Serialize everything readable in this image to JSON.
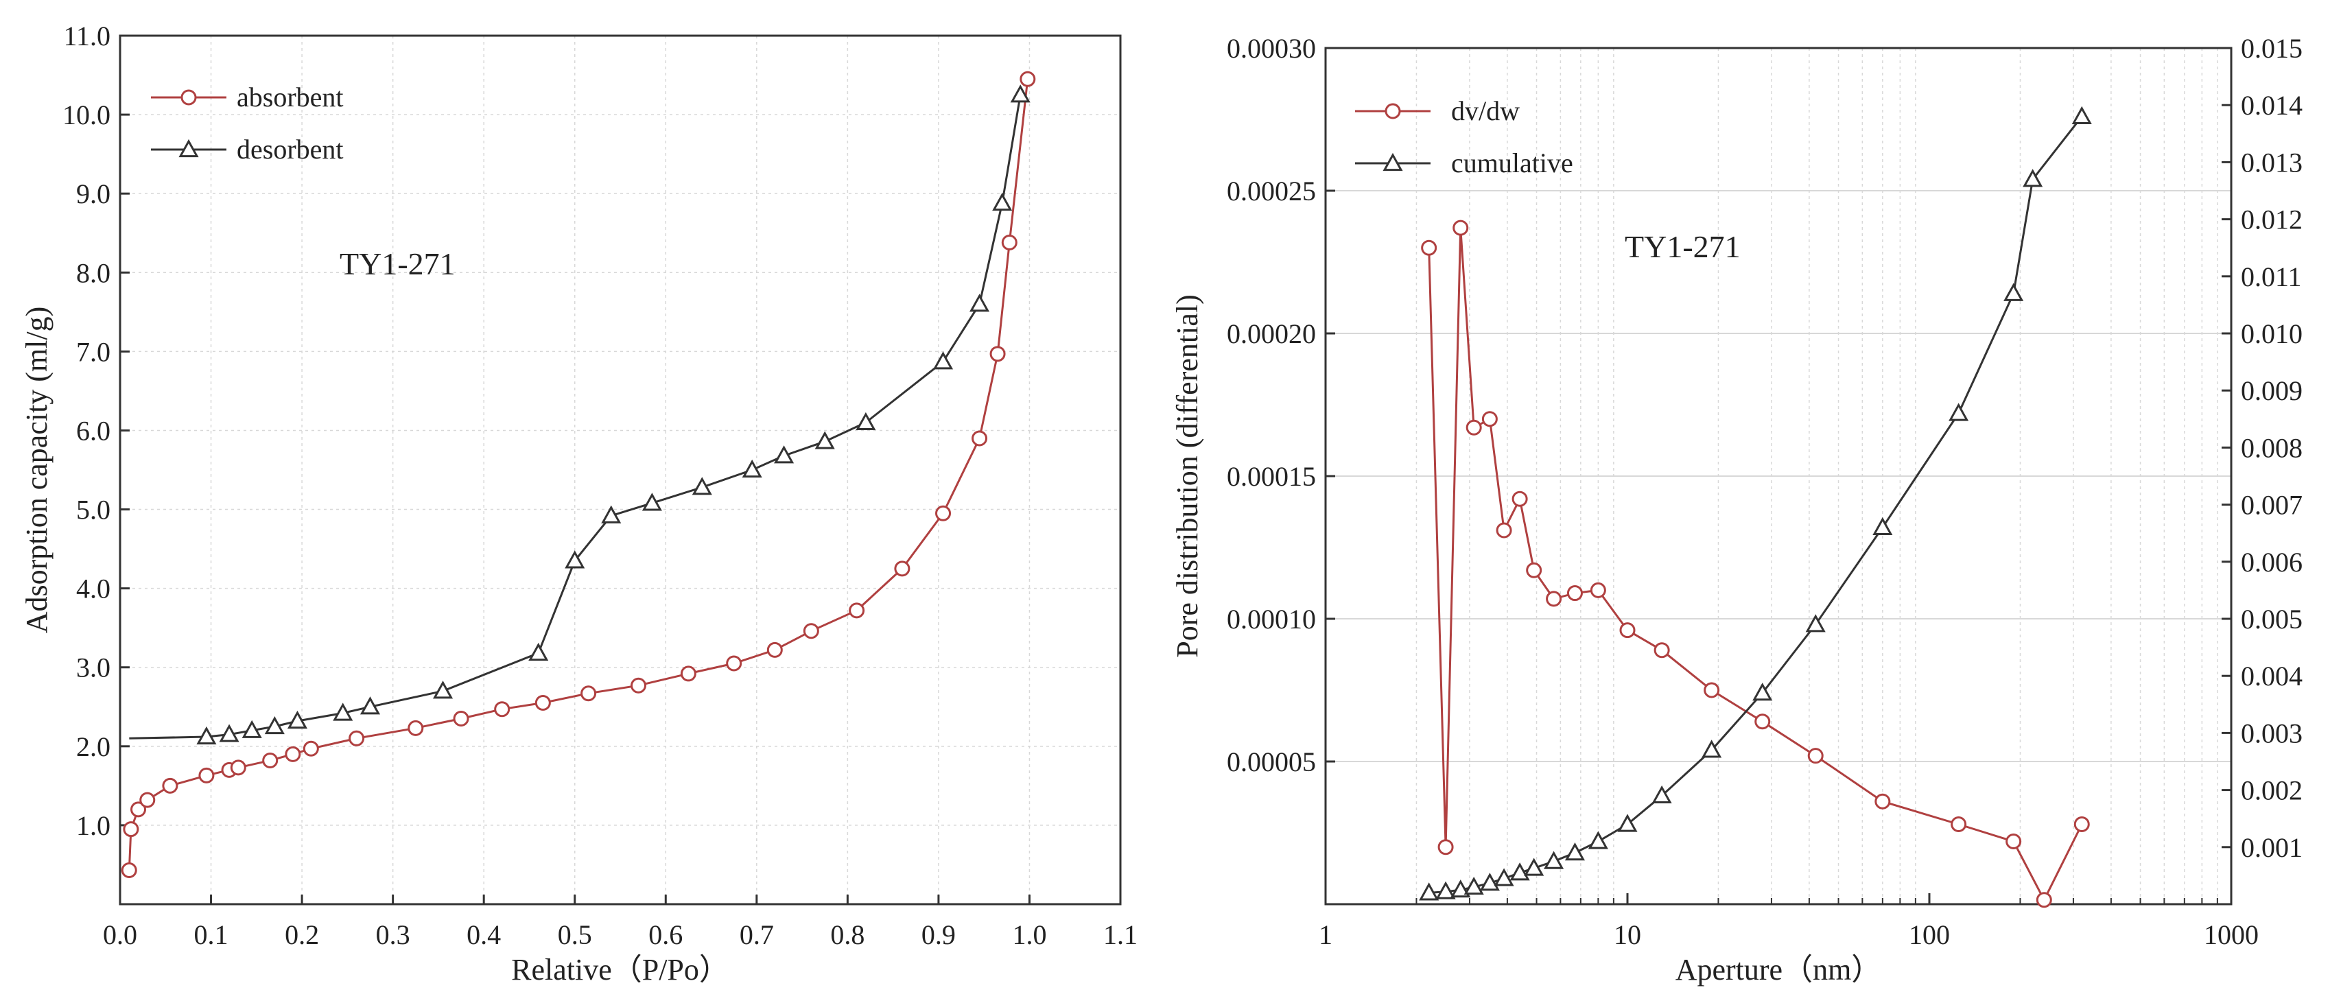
{
  "chart_data": [
    {
      "type": "line",
      "title": "TY1-271",
      "xlabel": "Relative（P/Po）",
      "ylabel": "Adsorption capacity (ml/g)",
      "xlim": [
        0.0,
        1.1
      ],
      "ylim": [
        0.0,
        11.0
      ],
      "grid": true,
      "legend_position": "top-left",
      "x_ticks": [
        "0.0",
        "0.1",
        "0.2",
        "0.3",
        "0.4",
        "0.5",
        "0.6",
        "0.7",
        "0.8",
        "0.9",
        "1.0",
        "1.1"
      ],
      "y_ticks": [
        "1.0",
        "2.0",
        "3.0",
        "4.0",
        "5.0",
        "6.0",
        "7.0",
        "8.0",
        "9.0",
        "10.0",
        "11.0"
      ],
      "series": [
        {
          "name": "absorbent",
          "marker": "circle",
          "color": "#b04040",
          "points": [
            [
              0.01,
              0.43
            ],
            [
              0.012,
              0.95
            ],
            [
              0.02,
              1.2
            ],
            [
              0.03,
              1.32
            ],
            [
              0.055,
              1.5
            ],
            [
              0.095,
              1.63
            ],
            [
              0.12,
              1.7
            ],
            [
              0.13,
              1.73
            ],
            [
              0.165,
              1.82
            ],
            [
              0.19,
              1.9
            ],
            [
              0.21,
              1.97
            ],
            [
              0.26,
              2.1
            ],
            [
              0.325,
              2.23
            ],
            [
              0.375,
              2.35
            ],
            [
              0.42,
              2.47
            ],
            [
              0.465,
              2.55
            ],
            [
              0.515,
              2.67
            ],
            [
              0.57,
              2.77
            ],
            [
              0.625,
              2.92
            ],
            [
              0.675,
              3.05
            ],
            [
              0.72,
              3.22
            ],
            [
              0.76,
              3.46
            ],
            [
              0.81,
              3.72
            ],
            [
              0.86,
              4.25
            ],
            [
              0.905,
              4.95
            ],
            [
              0.945,
              5.9
            ],
            [
              0.965,
              6.97
            ],
            [
              0.978,
              8.38
            ],
            [
              0.998,
              10.45
            ]
          ]
        },
        {
          "name": "desorbent",
          "marker": "triangle",
          "color": "#333333",
          "line_start": [
            0.01,
            2.1
          ],
          "points": [
            [
              0.095,
              2.12
            ],
            [
              0.12,
              2.15
            ],
            [
              0.145,
              2.2
            ],
            [
              0.17,
              2.25
            ],
            [
              0.195,
              2.32
            ],
            [
              0.245,
              2.42
            ],
            [
              0.275,
              2.5
            ],
            [
              0.355,
              2.7
            ],
            [
              0.46,
              3.18
            ],
            [
              0.5,
              4.35
            ],
            [
              0.54,
              4.92
            ],
            [
              0.585,
              5.08
            ],
            [
              0.64,
              5.28
            ],
            [
              0.695,
              5.5
            ],
            [
              0.73,
              5.68
            ],
            [
              0.775,
              5.86
            ],
            [
              0.82,
              6.1
            ],
            [
              0.905,
              6.87
            ],
            [
              0.945,
              7.6
            ],
            [
              0.97,
              8.88
            ],
            [
              0.99,
              10.25
            ]
          ]
        }
      ]
    },
    {
      "type": "line",
      "title": "TY1-271",
      "xlabel": "Aperture（nm）",
      "ylabel": "Pore distribution (differential)",
      "xscale": "log",
      "xlim": [
        1,
        1000
      ],
      "ylim": [
        0.0,
        0.0003
      ],
      "y2lim": [
        0.0,
        0.015
      ],
      "grid": true,
      "legend_position": "top-left",
      "x_ticks": [
        [
          1,
          "1"
        ],
        [
          10,
          "10"
        ],
        [
          100,
          "100"
        ],
        [
          1000,
          "1000"
        ]
      ],
      "y_ticks": [
        [
          5e-05,
          "0.00005"
        ],
        [
          0.0001,
          "0.00010"
        ],
        [
          0.00015,
          "0.00015"
        ],
        [
          0.0002,
          "0.00020"
        ],
        [
          0.00025,
          "0.00025"
        ],
        [
          0.0003,
          "0.00030"
        ]
      ],
      "y2_ticks": [
        [
          0.001,
          "0.001"
        ],
        [
          0.002,
          "0.002"
        ],
        [
          0.003,
          "0.003"
        ],
        [
          0.004,
          "0.004"
        ],
        [
          0.005,
          "0.005"
        ],
        [
          0.006,
          "0.006"
        ],
        [
          0.007,
          "0.007"
        ],
        [
          0.008,
          "0.008"
        ],
        [
          0.009,
          "0.009"
        ],
        [
          0.01,
          "0.010"
        ],
        [
          0.011,
          "0.011"
        ],
        [
          0.012,
          "0.012"
        ],
        [
          0.013,
          "0.013"
        ],
        [
          0.014,
          "0.014"
        ],
        [
          0.015,
          "0.015"
        ]
      ],
      "series": [
        {
          "name": "dv/dw",
          "marker": "circle",
          "color": "#b04040",
          "axis": "left",
          "points": [
            [
              2.2,
              0.00023
            ],
            [
              2.5,
              2e-05
            ],
            [
              2.8,
              0.000237
            ],
            [
              3.1,
              0.000167
            ],
            [
              3.5,
              0.00017
            ],
            [
              3.9,
              0.000131
            ],
            [
              4.4,
              0.000142
            ],
            [
              4.9,
              0.000117
            ],
            [
              5.7,
              0.000107
            ],
            [
              6.7,
              0.000109
            ],
            [
              8.0,
              0.00011
            ],
            [
              10.0,
              9.6e-05
            ],
            [
              13.0,
              8.9e-05
            ],
            [
              19.0,
              7.5e-05
            ],
            [
              28.0,
              6.4e-05
            ],
            [
              42.0,
              5.2e-05
            ],
            [
              70.0,
              3.6e-05
            ],
            [
              125.0,
              2.8e-05
            ],
            [
              190.0,
              2.2e-05
            ],
            [
              240.0,
              1.5e-06
            ],
            [
              320.0,
              2.8e-05
            ]
          ]
        },
        {
          "name": "cumulative",
          "marker": "triangle",
          "color": "#333333",
          "axis": "right",
          "points": [
            [
              2.2,
              0.0002
            ],
            [
              2.5,
              0.00022
            ],
            [
              2.8,
              0.00025
            ],
            [
              3.1,
              0.0003
            ],
            [
              3.5,
              0.00037
            ],
            [
              3.9,
              0.00045
            ],
            [
              4.4,
              0.00055
            ],
            [
              4.9,
              0.00063
            ],
            [
              5.7,
              0.00075
            ],
            [
              6.7,
              0.0009
            ],
            [
              8.0,
              0.0011
            ],
            [
              10.0,
              0.0014
            ],
            [
              13.0,
              0.0019
            ],
            [
              19.0,
              0.0027
            ],
            [
              28.0,
              0.0037
            ],
            [
              42.0,
              0.0049
            ],
            [
              70.0,
              0.0066
            ],
            [
              125.0,
              0.0086
            ],
            [
              190.0,
              0.0107
            ],
            [
              220.0,
              0.0127
            ],
            [
              320.0,
              0.0138
            ]
          ]
        }
      ]
    }
  ]
}
